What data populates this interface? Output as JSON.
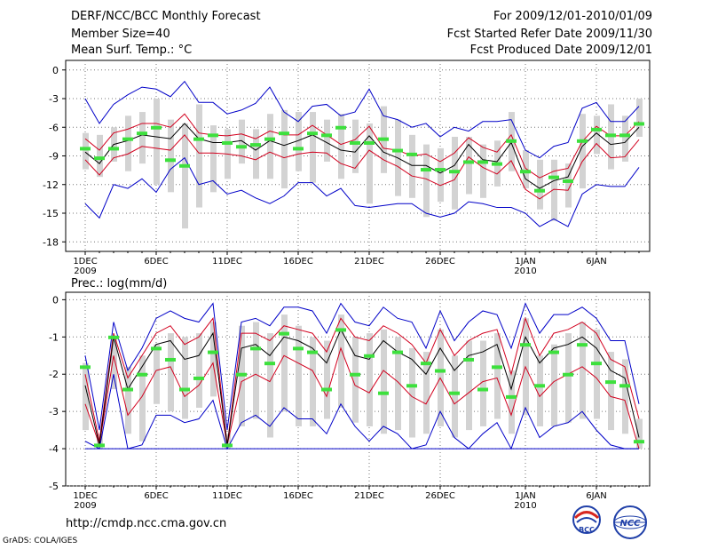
{
  "header": {
    "title": "DERF/NCC/BCC Monthly Forecast",
    "member": "Member Size=40",
    "variable": "Mean Surf. Temp.: °C",
    "period": "For 2009/12/01-2010/01/09",
    "started": "Fcst Started Refer Date 2009/11/30",
    "produced": "Fcst Produced Date 2009/12/01"
  },
  "footer": {
    "url": "http://cmdp.ncc.cma.gov.cn",
    "credit": "GrADS: COLA/IGES",
    "logo_left_text": "BCC",
    "logo_right_text": "NCC"
  },
  "colors": {
    "box": "#d3d3d3",
    "mean": "#000000",
    "sd": "#d2001e",
    "extreme": "#0000c8",
    "median": "#3de03d",
    "grid": "#777777"
  },
  "chart_data": [
    {
      "type": "box-and-line",
      "title": "Mean Surf. Temp.: °C",
      "xlabel": "",
      "ylabel": "°C",
      "ylim": [
        -19,
        1
      ],
      "yticks": [
        0,
        -3,
        -6,
        -9,
        -12,
        -15,
        -18
      ],
      "x_tick_labels": [
        {
          "day": 1,
          "label": "1DEC",
          "sub": "2009"
        },
        {
          "day": 6,
          "label": "6DEC",
          "sub": ""
        },
        {
          "day": 11,
          "label": "11DEC",
          "sub": ""
        },
        {
          "day": 16,
          "label": "16DEC",
          "sub": ""
        },
        {
          "day": 21,
          "label": "21DEC",
          "sub": ""
        },
        {
          "day": 26,
          "label": "26DEC",
          "sub": ""
        },
        {
          "day": 32,
          "label": "1JAN",
          "sub": "2010"
        },
        {
          "day": 37,
          "label": "6JAN",
          "sub": ""
        }
      ],
      "x_days": [
        1,
        2,
        3,
        4,
        5,
        6,
        7,
        8,
        9,
        10,
        11,
        12,
        13,
        14,
        15,
        16,
        17,
        18,
        19,
        20,
        21,
        22,
        23,
        24,
        25,
        26,
        27,
        28,
        29,
        30,
        31,
        32,
        33,
        34,
        35,
        36,
        37,
        38,
        39,
        40
      ],
      "series": [
        {
          "name": "max",
          "values": [
            -3.0,
            -5.6,
            -3.6,
            -2.6,
            -1.8,
            -2.0,
            -2.8,
            -1.2,
            -3.4,
            -3.4,
            -4.6,
            -4.2,
            -3.5,
            -1.8,
            -4.4,
            -5.4,
            -3.8,
            -3.6,
            -4.8,
            -4.4,
            -2.0,
            -4.8,
            -5.2,
            -6.0,
            -5.6,
            -7.0,
            -6.0,
            -6.4,
            -5.4,
            -5.4,
            -5.2,
            -8.4,
            -9.2,
            -8.0,
            -7.6,
            -4.0,
            -3.4,
            -5.4,
            -5.4,
            -3.8
          ]
        },
        {
          "name": "sd_upper",
          "values": [
            -7.2,
            -8.4,
            -6.6,
            -6.2,
            -5.6,
            -5.6,
            -6.0,
            -4.6,
            -6.6,
            -6.8,
            -6.9,
            -6.7,
            -7.2,
            -6.4,
            -6.8,
            -6.8,
            -5.8,
            -6.8,
            -7.8,
            -7.3,
            -5.9,
            -8.2,
            -8.4,
            -9.0,
            -8.8,
            -9.6,
            -8.7,
            -7.1,
            -8.1,
            -8.6,
            -6.8,
            -10.3,
            -11.3,
            -10.6,
            -10.3,
            -7.5,
            -5.9,
            -6.9,
            -6.9,
            -5.4
          ]
        },
        {
          "name": "mean",
          "values": [
            -8.6,
            -9.8,
            -7.8,
            -7.4,
            -6.8,
            -7.0,
            -7.2,
            -5.6,
            -7.2,
            -7.6,
            -7.6,
            -7.4,
            -8.4,
            -7.4,
            -7.9,
            -7.4,
            -6.8,
            -7.6,
            -8.4,
            -8.6,
            -6.9,
            -8.6,
            -9.2,
            -10.0,
            -10.0,
            -10.8,
            -10.0,
            -7.8,
            -9.4,
            -9.6,
            -7.6,
            -11.4,
            -12.4,
            -11.6,
            -11.2,
            -8.0,
            -6.6,
            -7.8,
            -7.6,
            -6.0
          ]
        },
        {
          "name": "sd_lower",
          "values": [
            -9.4,
            -11.0,
            -9.2,
            -8.8,
            -8.0,
            -8.2,
            -8.4,
            -6.8,
            -8.7,
            -8.7,
            -8.8,
            -9.0,
            -9.4,
            -8.6,
            -9.2,
            -8.8,
            -8.6,
            -8.7,
            -9.8,
            -10.3,
            -8.4,
            -9.4,
            -10.1,
            -11.1,
            -11.4,
            -12.1,
            -11.5,
            -9.1,
            -10.2,
            -10.9,
            -9.5,
            -12.5,
            -13.5,
            -12.5,
            -12.6,
            -9.6,
            -7.7,
            -9.2,
            -9.1,
            -7.3
          ]
        },
        {
          "name": "min",
          "values": [
            -14.0,
            -15.5,
            -12.0,
            -12.4,
            -11.4,
            -12.8,
            -10.4,
            -9.2,
            -12.0,
            -11.6,
            -13.0,
            -12.6,
            -13.4,
            -14.0,
            -13.2,
            -11.8,
            -11.8,
            -13.2,
            -12.4,
            -14.2,
            -14.4,
            -14.2,
            -14.0,
            -14.0,
            -15.0,
            -15.4,
            -15.0,
            -13.8,
            -14.0,
            -14.4,
            -14.4,
            -15.0,
            -16.4,
            -15.6,
            -16.4,
            -13.0,
            -12.0,
            -12.2,
            -12.2,
            -10.2
          ]
        },
        {
          "name": "median",
          "values": [
            -8.2,
            -9.2,
            -8.2,
            -7.2,
            -6.6,
            -6.0,
            -9.4,
            -10.0,
            -7.2,
            -6.8,
            -7.6,
            -8.0,
            -7.8,
            -7.2,
            -6.6,
            -8.2,
            -6.6,
            -6.8,
            -6.0,
            -7.6,
            -7.6,
            -7.2,
            -8.4,
            -8.8,
            -10.4,
            -10.4,
            -10.6,
            -9.6,
            -9.6,
            -9.8,
            -7.4,
            -10.6,
            -12.6,
            -11.2,
            -11.6,
            -7.4,
            -6.2,
            -6.8,
            -6.8,
            -5.6
          ]
        },
        {
          "name": "box_top",
          "values": [
            -6.6,
            -6.8,
            -6.0,
            -4.8,
            -4.4,
            -3.0,
            -5.2,
            -5.6,
            -3.6,
            -5.8,
            -6.2,
            -5.2,
            -6.2,
            -4.6,
            -4.2,
            -4.4,
            -4.4,
            -5.2,
            -4.6,
            -5.2,
            -5.6,
            -3.8,
            -5.2,
            -6.8,
            -7.8,
            -8.2,
            -7.0,
            -7.0,
            -7.8,
            -7.4,
            -4.4,
            -8.4,
            -9.4,
            -9.4,
            -9.8,
            -4.6,
            -4.8,
            -3.6,
            -4.8,
            -3.0
          ]
        },
        {
          "name": "box_bottom",
          "values": [
            -10.4,
            -11.2,
            -9.6,
            -10.6,
            -9.8,
            -12.0,
            -12.8,
            -16.6,
            -14.4,
            -12.8,
            -11.4,
            -9.8,
            -11.4,
            -11.4,
            -12.4,
            -10.6,
            -11.8,
            -9.6,
            -11.4,
            -10.8,
            -14.0,
            -10.8,
            -13.2,
            -13.4,
            -15.4,
            -13.8,
            -14.6,
            -13.0,
            -13.4,
            -12.2,
            -10.6,
            -12.4,
            -14.6,
            -15.8,
            -14.4,
            -12.4,
            -8.8,
            -10.4,
            -9.6,
            -7.0
          ]
        }
      ]
    },
    {
      "type": "box-and-line",
      "title": "Prec.: log(mm/d)",
      "xlabel": "",
      "ylabel": "log(mm/d)",
      "ylim": [
        -5,
        0.2
      ],
      "yticks": [
        0,
        -1,
        -2,
        -3,
        -4,
        -5
      ],
      "x_tick_labels": [
        {
          "day": 1,
          "label": "1DEC",
          "sub": "2009"
        },
        {
          "day": 6,
          "label": "6DEC",
          "sub": ""
        },
        {
          "day": 11,
          "label": "11DEC",
          "sub": ""
        },
        {
          "day": 16,
          "label": "16DEC",
          "sub": ""
        },
        {
          "day": 21,
          "label": "21DEC",
          "sub": ""
        },
        {
          "day": 26,
          "label": "26DEC",
          "sub": ""
        },
        {
          "day": 32,
          "label": "1JAN",
          "sub": "2010"
        },
        {
          "day": 37,
          "label": "6JAN",
          "sub": ""
        }
      ],
      "x_days": [
        1,
        2,
        3,
        4,
        5,
        6,
        7,
        8,
        9,
        10,
        11,
        12,
        13,
        14,
        15,
        16,
        17,
        18,
        19,
        20,
        21,
        22,
        23,
        24,
        25,
        26,
        27,
        28,
        29,
        30,
        31,
        32,
        33,
        34,
        35,
        36,
        37,
        38,
        39,
        40
      ],
      "series": [
        {
          "name": "max",
          "values": [
            -1.5,
            -3.5,
            -0.6,
            -1.9,
            -1.3,
            -0.5,
            -0.3,
            -0.5,
            -0.6,
            -0.1,
            -3.5,
            -0.6,
            -0.5,
            -0.7,
            -0.2,
            -0.2,
            -0.3,
            -0.9,
            -0.1,
            -0.6,
            -0.7,
            -0.2,
            -0.5,
            -0.6,
            -1.3,
            -0.3,
            -1.1,
            -0.6,
            -0.3,
            -0.4,
            -1.3,
            -0.1,
            -0.9,
            -0.4,
            -0.4,
            -0.2,
            -0.5,
            -1.1,
            -1.1,
            -2.8
          ]
        },
        {
          "name": "sd_upper",
          "values": [
            -2.0,
            -3.8,
            -0.9,
            -2.1,
            -1.5,
            -0.9,
            -0.7,
            -1.2,
            -1.0,
            -0.5,
            -3.9,
            -0.9,
            -0.9,
            -1.1,
            -0.7,
            -0.8,
            -0.9,
            -1.4,
            -0.5,
            -1.0,
            -1.1,
            -0.7,
            -0.9,
            -1.2,
            -1.7,
            -0.8,
            -1.5,
            -1.1,
            -0.9,
            -0.8,
            -2.0,
            -0.5,
            -1.5,
            -0.9,
            -0.8,
            -0.6,
            -0.9,
            -1.6,
            -1.8,
            -3.2
          ]
        },
        {
          "name": "mean",
          "values": [
            -2.3,
            -3.9,
            -1.0,
            -2.4,
            -1.8,
            -1.2,
            -1.1,
            -1.6,
            -1.5,
            -0.9,
            -3.9,
            -1.3,
            -1.2,
            -1.5,
            -1.0,
            -1.1,
            -1.3,
            -1.7,
            -0.8,
            -1.5,
            -1.6,
            -1.1,
            -1.4,
            -1.6,
            -2.0,
            -1.3,
            -1.9,
            -1.5,
            -1.4,
            -1.2,
            -2.4,
            -1.0,
            -1.7,
            -1.3,
            -1.2,
            -1.0,
            -1.3,
            -1.9,
            -2.1,
            -3.7
          ]
        },
        {
          "name": "sd_lower",
          "values": [
            -2.8,
            -3.9,
            -1.5,
            -3.1,
            -2.6,
            -1.9,
            -1.8,
            -2.6,
            -2.3,
            -1.7,
            -3.9,
            -2.2,
            -2.0,
            -2.2,
            -1.5,
            -1.7,
            -1.9,
            -2.6,
            -1.3,
            -2.3,
            -2.5,
            -1.9,
            -2.2,
            -2.6,
            -2.8,
            -2.1,
            -2.8,
            -2.5,
            -2.2,
            -2.1,
            -3.1,
            -1.8,
            -2.6,
            -2.2,
            -2.0,
            -1.8,
            -2.1,
            -2.6,
            -2.7,
            -4.0
          ]
        },
        {
          "name": "min",
          "values": [
            -3.8,
            -4.0,
            -2.0,
            -4.0,
            -3.9,
            -3.1,
            -3.1,
            -3.3,
            -3.2,
            -2.7,
            -4.0,
            -3.3,
            -3.1,
            -3.4,
            -2.9,
            -3.2,
            -3.2,
            -3.6,
            -2.8,
            -3.4,
            -3.8,
            -3.4,
            -3.6,
            -4.0,
            -3.9,
            -3.0,
            -3.7,
            -4.0,
            -3.6,
            -3.3,
            -4.0,
            -2.9,
            -3.7,
            -3.4,
            -3.3,
            -3.0,
            -3.5,
            -3.9,
            -4.0,
            -4.0
          ]
        },
        {
          "name": "median",
          "values": [
            -1.8,
            -3.9,
            -1.0,
            -2.4,
            -2.0,
            -1.3,
            -1.6,
            -2.4,
            -2.1,
            -1.4,
            -3.9,
            -2.0,
            -1.3,
            -1.7,
            -0.9,
            -1.3,
            -1.4,
            -2.4,
            -0.8,
            -2.0,
            -1.5,
            -2.5,
            -1.4,
            -2.3,
            -1.7,
            -1.9,
            -2.5,
            -1.6,
            -2.4,
            -1.8,
            -2.6,
            -1.2,
            -2.3,
            -1.4,
            -2.0,
            -1.2,
            -1.7,
            -2.2,
            -2.3,
            -3.8
          ]
        },
        {
          "name": "box_top",
          "values": [
            -1.7,
            -3.6,
            -1.0,
            -1.8,
            -1.5,
            -1.2,
            -0.9,
            -1.0,
            -0.9,
            -0.6,
            -3.6,
            -0.7,
            -0.6,
            -0.9,
            -0.4,
            -0.7,
            -1.0,
            -1.1,
            -0.4,
            -1.0,
            -0.9,
            -0.8,
            -1.0,
            -1.3,
            -1.4,
            -0.8,
            -1.5,
            -1.1,
            -1.1,
            -0.9,
            -1.9,
            -0.5,
            -1.5,
            -1.2,
            -0.9,
            -0.6,
            -0.8,
            -1.4,
            -1.6,
            -3.2
          ]
        },
        {
          "name": "box_bottom",
          "values": [
            -3.5,
            -4.0,
            -2.4,
            -3.6,
            -3.8,
            -2.8,
            -3.0,
            -3.2,
            -2.9,
            -2.6,
            -4.0,
            -3.4,
            -3.2,
            -3.7,
            -3.0,
            -3.4,
            -3.4,
            -3.2,
            -2.9,
            -3.3,
            -3.4,
            -3.6,
            -3.5,
            -3.7,
            -3.6,
            -3.4,
            -3.7,
            -3.5,
            -3.4,
            -3.2,
            -3.6,
            -3.1,
            -3.4,
            -3.4,
            -3.3,
            -3.2,
            -3.2,
            -3.5,
            -3.6,
            -4.0
          ]
        }
      ]
    }
  ]
}
